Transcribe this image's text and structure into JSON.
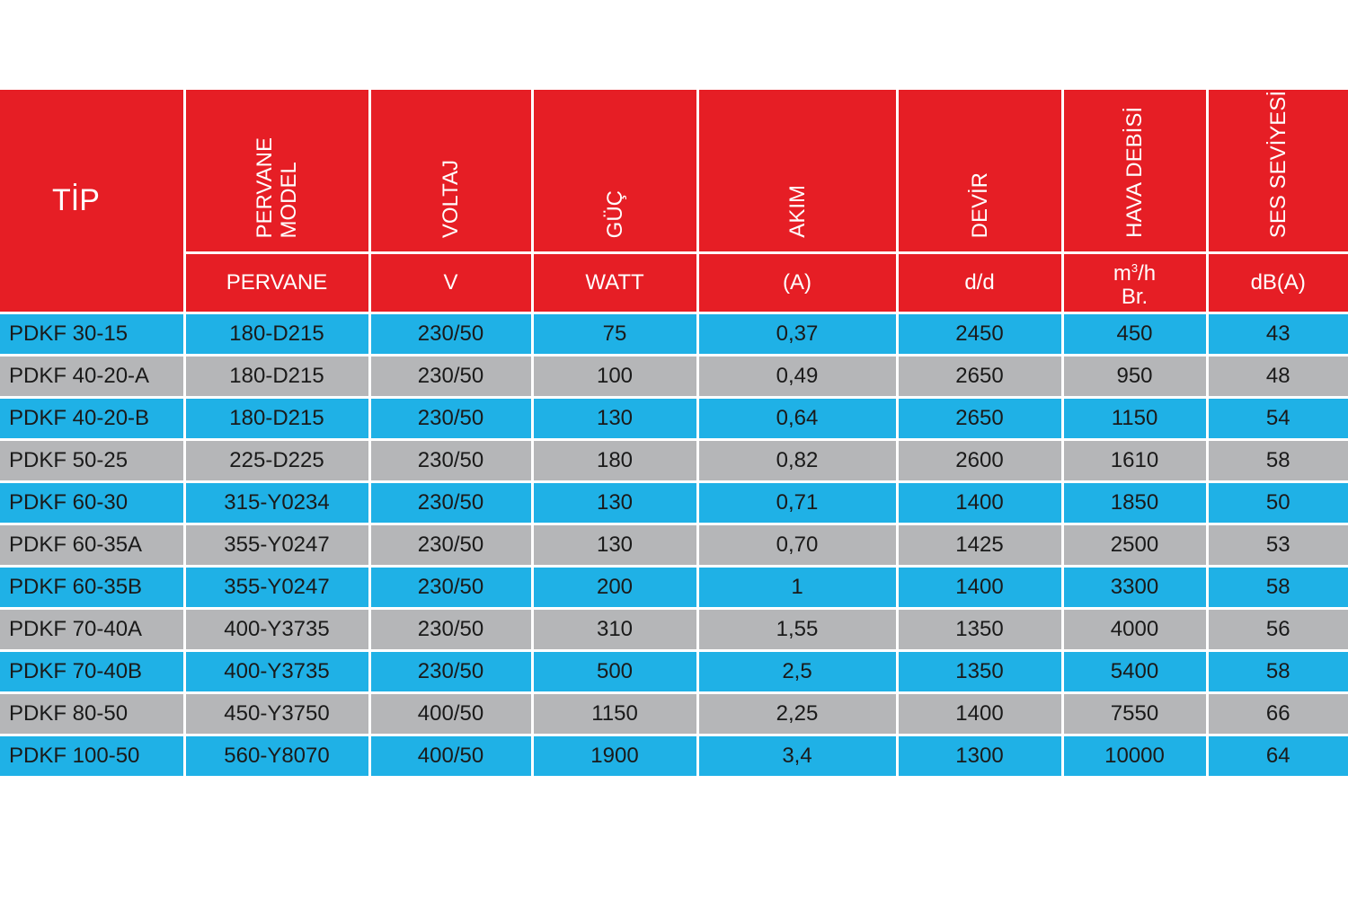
{
  "table": {
    "header": {
      "tip": "TİP",
      "rotated": [
        [
          "PERVANE",
          "MODEL"
        ],
        [
          "VOLTAJ"
        ],
        [
          "GÜÇ"
        ],
        [
          "AKIM"
        ],
        [
          "DEVİR"
        ],
        [
          "HAVA DEBİSİ"
        ],
        [
          "SES SEVİYESİ"
        ]
      ],
      "units": {
        "pervane": "PERVANE",
        "voltaj": "V",
        "guc": "WATT",
        "akim": "(A)",
        "devir": "d/d",
        "hava_unit_base": "m",
        "hava_unit_sup": "3",
        "hava_unit_rest": "/h",
        "hava_unit_line2": "Br.",
        "ses": "dB(A)"
      }
    },
    "rows": [
      [
        "PDKF 30-15",
        "180-D215",
        "230/50",
        "75",
        "0,37",
        "2450",
        "450",
        "43"
      ],
      [
        "PDKF 40-20-A",
        "180-D215",
        "230/50",
        "100",
        "0,49",
        "2650",
        "950",
        "48"
      ],
      [
        "PDKF 40-20-B",
        "180-D215",
        "230/50",
        "130",
        "0,64",
        "2650",
        "1150",
        "54"
      ],
      [
        "PDKF 50-25",
        "225-D225",
        "230/50",
        "180",
        "0,82",
        "2600",
        "1610",
        "58"
      ],
      [
        "PDKF 60-30",
        "315-Y0234",
        "230/50",
        "130",
        "0,71",
        "1400",
        "1850",
        "50"
      ],
      [
        "PDKF 60-35A",
        "355-Y0247",
        "230/50",
        "130",
        "0,70",
        "1425",
        "2500",
        "53"
      ],
      [
        "PDKF 60-35B",
        "355-Y0247",
        "230/50",
        "200",
        "1",
        "1400",
        "3300",
        "58"
      ],
      [
        "PDKF 70-40A",
        "400-Y3735",
        "230/50",
        "310",
        "1,55",
        "1350",
        "4000",
        "56"
      ],
      [
        "PDKF 70-40B",
        "400-Y3735",
        "230/50",
        "500",
        "2,5",
        "1350",
        "5400",
        "58"
      ],
      [
        "PDKF 80-50",
        "450-Y3750",
        "400/50",
        "1150",
        "2,25",
        "1400",
        "7550",
        "66"
      ],
      [
        "PDKF 100-50",
        "560-Y8070",
        "400/50",
        "1900",
        "3,4",
        "1300",
        "10000",
        "64"
      ]
    ]
  },
  "colors": {
    "header_red": "#e61e25",
    "row_blue": "#1fb1e6",
    "row_grey": "#b5b6b8"
  }
}
